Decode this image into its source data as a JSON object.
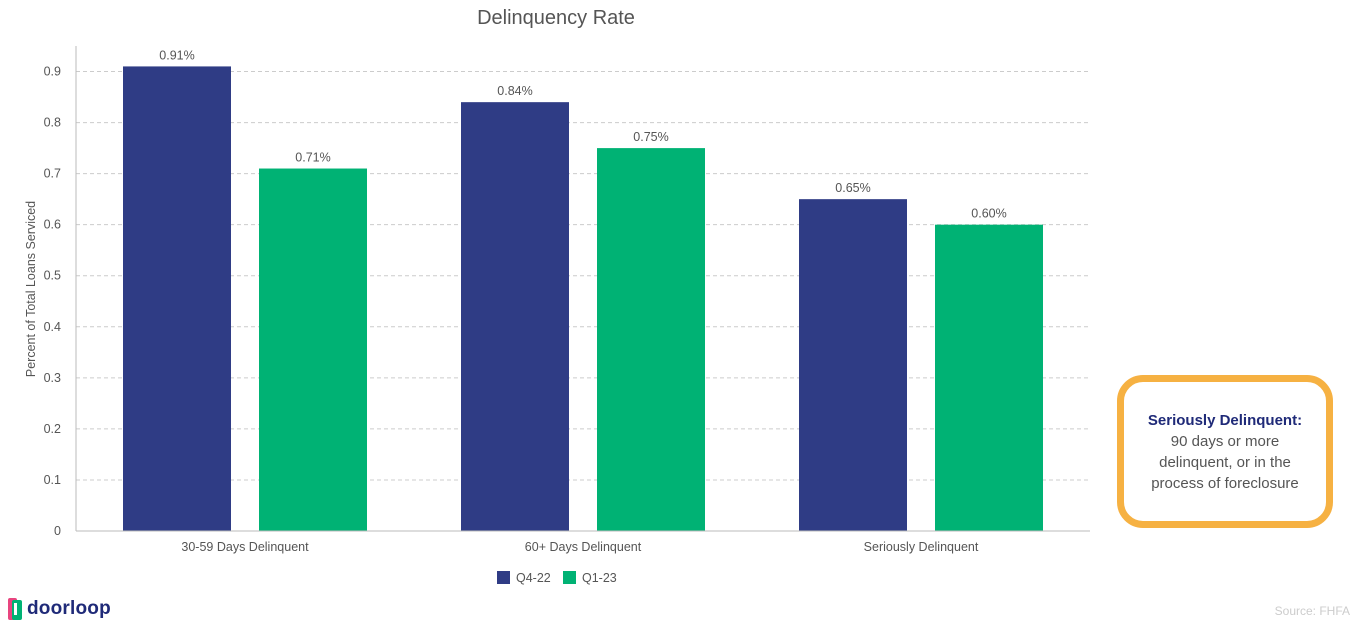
{
  "chart_data": {
    "type": "bar",
    "title": "Delinquency Rate",
    "xlabel": "",
    "ylabel": "Percent of Total Loans Serviced",
    "ylim": [
      0,
      0.95
    ],
    "yticks": [
      0,
      0.1,
      0.2,
      0.3,
      0.4,
      0.5,
      0.6,
      0.7,
      0.8,
      0.9
    ],
    "ytick_labels": [
      "0",
      "0.1",
      "0.2",
      "0.3",
      "0.4",
      "0.5",
      "0.6",
      "0.7",
      "0.8",
      "0.9"
    ],
    "categories": [
      "30-59 Days Delinquent",
      "60+ Days Delinquent",
      "Seriously Delinquent"
    ],
    "series": [
      {
        "name": "Q4-22",
        "color": "#2f3c85",
        "values": [
          0.91,
          0.84,
          0.65
        ],
        "labels": [
          "0.91%",
          "0.84%",
          "0.65%"
        ]
      },
      {
        "name": "Q1-23",
        "color": "#00b274",
        "values": [
          0.71,
          0.75,
          0.6
        ],
        "labels": [
          "0.71%",
          "0.75%",
          "0.60%"
        ]
      }
    ],
    "grid": true,
    "legend_position": "bottom-center"
  },
  "annotation": {
    "title": "Seriously Delinquent:",
    "body": "90 days or more delinquent, or in the process of foreclosure",
    "border_color": "#f6b142"
  },
  "brand": {
    "name": "doorloop",
    "icon": "doorloop-logo-icon"
  },
  "source": "Source: FHFA"
}
